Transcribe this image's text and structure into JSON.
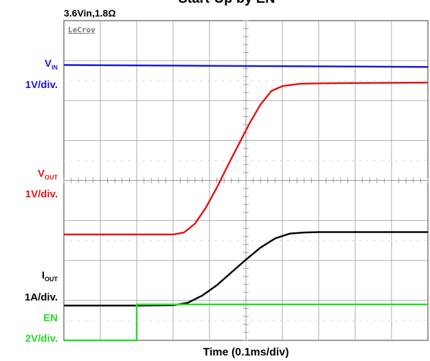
{
  "chart_data": {
    "type": "line",
    "title": "Start-Up by EN",
    "subtitle": "3.6Vin,1.8Ω",
    "xlabel": "Time (0.1ms/div)",
    "watermark": "LeCroy",
    "grid": true,
    "x_divisions": 10,
    "y_divisions": 8,
    "xlim": [
      0,
      10
    ],
    "ylim": [
      -4,
      4
    ],
    "series": [
      {
        "name": "VIN",
        "name_main": "V",
        "name_sub": "IN",
        "scale": "1V/div.",
        "color": "#1515e0",
        "x": [
          0,
          2,
          4,
          6,
          8,
          10
        ],
        "y": [
          2.89,
          2.88,
          2.87,
          2.86,
          2.85,
          2.84
        ]
      },
      {
        "name": "VOUT",
        "name_main": "V",
        "name_sub": "OUT",
        "scale": "1V/div.",
        "color": "#e01414",
        "x": [
          0,
          1.0,
          2.0,
          3.0,
          3.3,
          3.6,
          3.9,
          4.2,
          4.5,
          4.8,
          5.1,
          5.4,
          5.7,
          6.0,
          6.5,
          7.0,
          8.0,
          10
        ],
        "y": [
          -1.35,
          -1.35,
          -1.35,
          -1.35,
          -1.3,
          -1.08,
          -0.68,
          -0.18,
          0.37,
          0.9,
          1.43,
          1.9,
          2.24,
          2.36,
          2.42,
          2.43,
          2.44,
          2.45
        ]
      },
      {
        "name": "IOUT",
        "name_main": "I",
        "name_sub": "OUT",
        "scale": "1A/div.",
        "color": "#000000",
        "x": [
          0,
          1.0,
          2.0,
          3.0,
          3.4,
          3.8,
          4.2,
          4.6,
          5.0,
          5.4,
          5.8,
          6.2,
          6.6,
          7.0,
          8.0,
          10
        ],
        "y": [
          -3.13,
          -3.13,
          -3.13,
          -3.12,
          -3.06,
          -2.88,
          -2.62,
          -2.3,
          -1.98,
          -1.68,
          -1.45,
          -1.33,
          -1.3,
          -1.29,
          -1.29,
          -1.29
        ]
      },
      {
        "name": "EN",
        "name_main": "EN",
        "name_sub": "",
        "scale": "2V/div.",
        "color": "#22dd22",
        "x": [
          0,
          2.0,
          2.0,
          10
        ],
        "y": [
          -4.0,
          -4.0,
          -3.1,
          -3.1
        ]
      }
    ]
  }
}
